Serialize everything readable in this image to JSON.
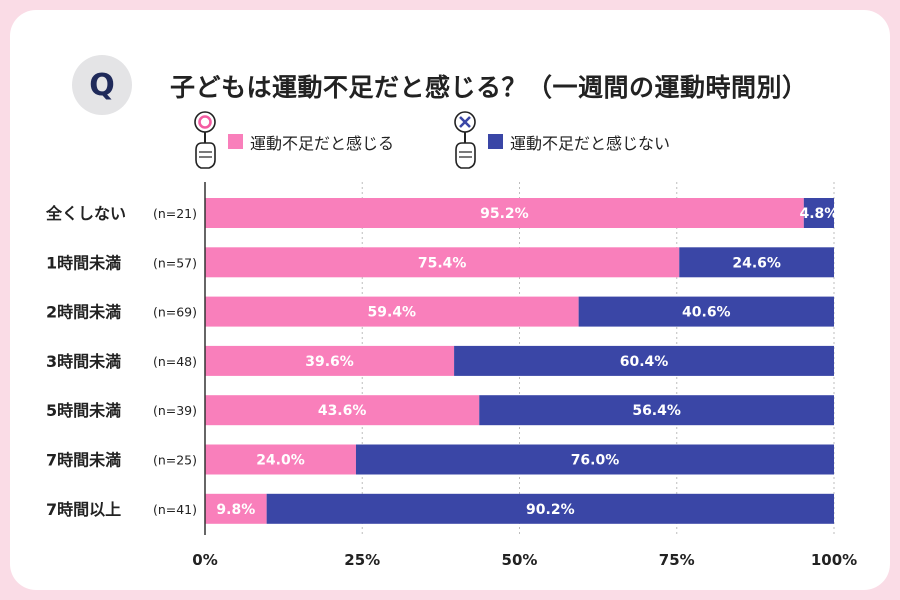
{
  "question_badge": "Q",
  "title": "子どもは運動不足だと感じる？（一週間の運動時間別）",
  "legend": [
    {
      "label": "運動不足だと感じる",
      "color": "#f97fbb",
      "icon": "circle-sign-icon"
    },
    {
      "label": "運動不足だと感じない",
      "color": "#3a46a6",
      "icon": "cross-sign-icon"
    }
  ],
  "chart_data": {
    "type": "bar",
    "orientation": "horizontal",
    "stacked": true,
    "categories": [
      "全くしない",
      "1時間未満",
      "2時間未満",
      "3時間未満",
      "5時間未満",
      "7時間未満",
      "7時間以上"
    ],
    "sample_sizes": [
      "(n=21)",
      "(n=57)",
      "(n=69)",
      "(n=48)",
      "(n=39)",
      "(n=25)",
      "(n=41)"
    ],
    "series": [
      {
        "name": "運動不足だと感じる",
        "color": "#f97fbb",
        "values": [
          95.2,
          75.4,
          59.4,
          39.6,
          43.6,
          24.0,
          9.8
        ],
        "labels": [
          "95.2%",
          "75.4%",
          "59.4%",
          "39.6%",
          "43.6%",
          "24.0%",
          "9.8%"
        ]
      },
      {
        "name": "運動不足だと感じない",
        "color": "#3a46a6",
        "values": [
          4.8,
          24.6,
          40.6,
          60.4,
          56.4,
          76.0,
          90.2
        ],
        "labels": [
          "4.8%",
          "24.6%",
          "40.6%",
          "60.4%",
          "56.4%",
          "76.0%",
          "90.2%"
        ]
      }
    ],
    "xlim": [
      0,
      100
    ],
    "xticks": [
      0,
      25,
      50,
      75,
      100
    ],
    "xtick_labels": [
      "0%",
      "25%",
      "50%",
      "75%",
      "100%"
    ],
    "grid": true
  }
}
